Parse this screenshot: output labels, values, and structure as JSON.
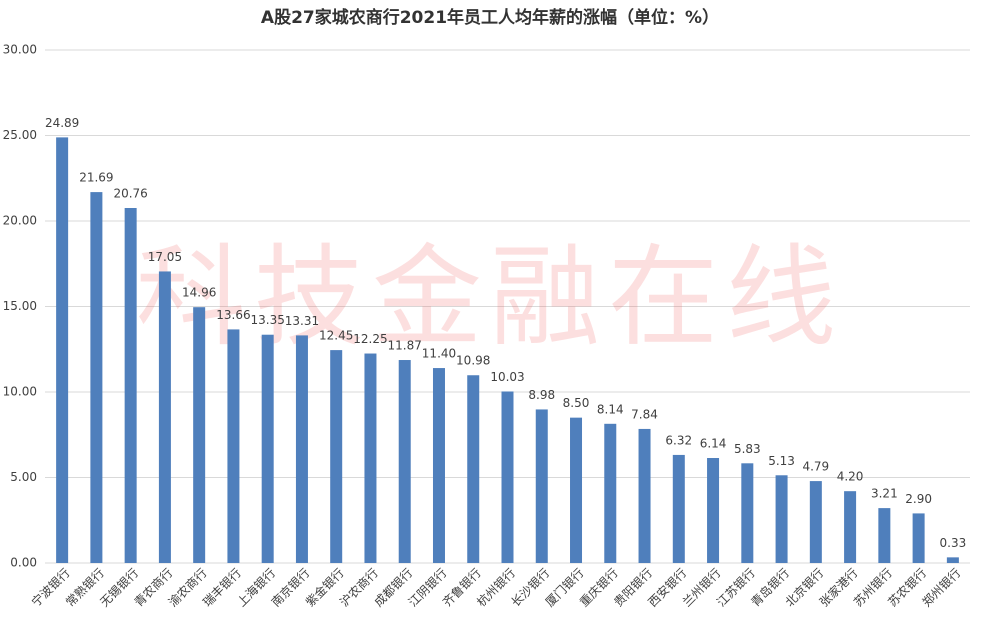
{
  "chart_data": {
    "type": "bar",
    "title": "A股27家城农商行2021年员工人均年薪的涨幅（单位：%）",
    "watermark": "科技金融在线",
    "categories": [
      "宁波银行",
      "常熟银行",
      "无锡银行",
      "青农商行",
      "渝农商行",
      "瑞丰银行",
      "上海银行",
      "南京银行",
      "紫金银行",
      "沪农商行",
      "成都银行",
      "江阴银行",
      "齐鲁银行",
      "杭州银行",
      "长沙银行",
      "厦门银行",
      "重庆银行",
      "贵阳银行",
      "西安银行",
      "兰州银行",
      "江苏银行",
      "青岛银行",
      "北京银行",
      "张家港行",
      "苏州银行",
      "苏农银行",
      "郑州银行"
    ],
    "values": [
      24.89,
      21.69,
      20.76,
      17.05,
      14.96,
      13.66,
      13.35,
      13.31,
      12.45,
      12.25,
      11.87,
      11.4,
      10.98,
      10.03,
      8.98,
      8.5,
      8.14,
      7.84,
      6.32,
      6.14,
      5.83,
      5.13,
      4.79,
      4.2,
      3.21,
      2.9,
      0.33
    ],
    "value_labels": [
      "24.89",
      "21.69",
      "20.76",
      "17.05",
      "14.96",
      "13.66",
      "13.35",
      "13.31",
      "12.45",
      "12.25",
      "11.87",
      "11.40",
      "10.98",
      "10.03",
      "8.98",
      "8.50",
      "8.14",
      "7.84",
      "6.32",
      "6.14",
      "5.83",
      "5.13",
      "4.79",
      "4.20",
      "3.21",
      "2.90",
      "0.33"
    ],
    "color": "#4f7fbc",
    "ylim": [
      0,
      30
    ],
    "yticks": [
      {
        "value": 0,
        "label": "0.00"
      },
      {
        "value": 5,
        "label": "5.00"
      },
      {
        "value": 10,
        "label": "10.00"
      },
      {
        "value": 15,
        "label": "15.00"
      },
      {
        "value": 20,
        "label": "20.00"
      },
      {
        "value": 25,
        "label": "25.00"
      },
      {
        "value": 30,
        "label": "30.00"
      }
    ],
    "grid": true
  }
}
